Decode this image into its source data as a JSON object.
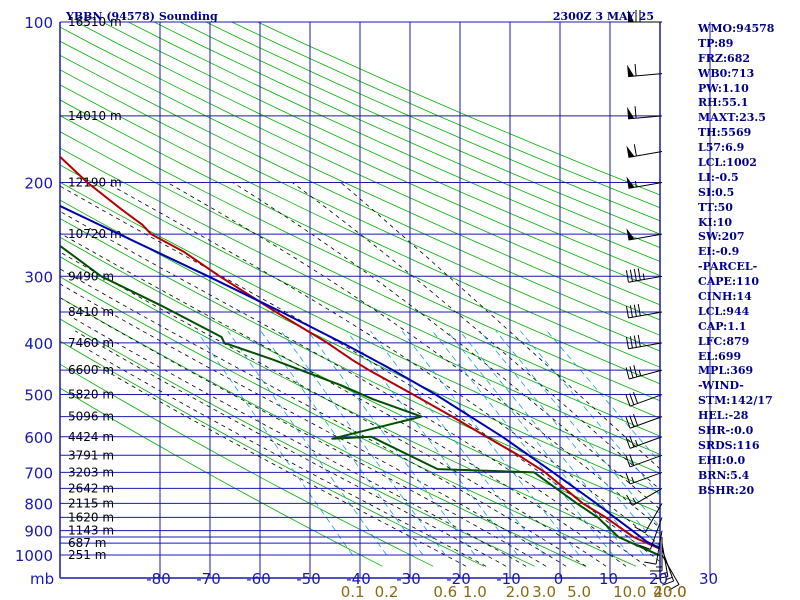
{
  "header": {
    "station_title": "YBBN (94578) Sounding",
    "valid_time": "2300Z  3 MAY 25"
  },
  "colors": {
    "axis_grid": "#1818b4",
    "dry_adiabat": "#00b000",
    "moist_adiabat": "#000000",
    "mixing_ratio": "#1aa0d0",
    "temperature": "#b40000",
    "dewpoint": "#005000",
    "parcel": "#0000b4",
    "wind_barbs": "#000000"
  },
  "chart_data": {
    "type": "skew-t log-p",
    "pressure_axis_label": "mb",
    "pressure_levels": [
      100,
      200,
      300,
      400,
      500,
      600,
      700,
      800,
      900,
      1000
    ],
    "pressure_gridlines": [
      100,
      150,
      200,
      250,
      300,
      350,
      400,
      450,
      500,
      550,
      600,
      650,
      700,
      750,
      800,
      850,
      900,
      925,
      950,
      1000
    ],
    "temperature_ticks": [
      -80,
      -70,
      -60,
      -50,
      -40,
      -30,
      -20,
      -10,
      0,
      10,
      20,
      30
    ],
    "mixing_ratio_labels": [
      "0.1",
      "0.2",
      "0.6",
      "1.0",
      "2.0",
      "3.0",
      "5.0",
      "10.0",
      "20.0",
      "40.0"
    ],
    "mixing_ratio_values": [
      0.1,
      0.2,
      0.6,
      1.0,
      2.0,
      3.0,
      5.0,
      10.0,
      20.0,
      40.0
    ],
    "height_labels": [
      {
        "p": 100,
        "text": "16510 m"
      },
      {
        "p": 150,
        "text": "14010 m"
      },
      {
        "p": 200,
        "text": "12190 m"
      },
      {
        "p": 250,
        "text": "10720 m"
      },
      {
        "p": 300,
        "text": "9490 m"
      },
      {
        "p": 350,
        "text": "8410 m"
      },
      {
        "p": 400,
        "text": "7460 m"
      },
      {
        "p": 450,
        "text": "6600 m"
      },
      {
        "p": 500,
        "text": "5820 m"
      },
      {
        "p": 550,
        "text": "5096 m"
      },
      {
        "p": 600,
        "text": "4424 m"
      },
      {
        "p": 650,
        "text": "3791 m"
      },
      {
        "p": 700,
        "text": "3203 m"
      },
      {
        "p": 750,
        "text": "2642 m"
      },
      {
        "p": 800,
        "text": "2115 m"
      },
      {
        "p": 850,
        "text": "1620 m"
      },
      {
        "p": 900,
        "text": "1143 m"
      },
      {
        "p": 950,
        "text": "687 m"
      },
      {
        "p": 1000,
        "text": "251 m"
      }
    ],
    "series": [
      {
        "key": "temperature",
        "points": [
          [
            1011,
            23.5
          ],
          [
            1000,
            22.6
          ],
          [
            925,
            16.4
          ],
          [
            850,
            12.8
          ],
          [
            800,
            9.6
          ],
          [
            700,
            5.2
          ],
          [
            650,
            1.6
          ],
          [
            600,
            -3.0
          ],
          [
            550,
            -7.8
          ],
          [
            500,
            -13.4
          ],
          [
            450,
            -19.8
          ],
          [
            430,
            -22.2
          ],
          [
            400,
            -25.4
          ],
          [
            350,
            -32.6
          ],
          [
            300,
            -40.3
          ],
          [
            270,
            -45.0
          ],
          [
            250,
            -49.8
          ],
          [
            240,
            -50.6
          ],
          [
            225,
            -53.2
          ],
          [
            200,
            -57.4
          ],
          [
            160,
            -63.2
          ],
          [
            150,
            -66.6
          ],
          [
            125,
            -69.0
          ],
          [
            100,
            -73.0
          ]
        ]
      },
      {
        "key": "dewpoint",
        "points": [
          [
            1011,
            21.5
          ],
          [
            1000,
            19.6
          ],
          [
            925,
            13.4
          ],
          [
            850,
            11.2
          ],
          [
            800,
            8.4
          ],
          [
            700,
            3.0
          ],
          [
            690,
            -16.0
          ],
          [
            600,
            -26.0
          ],
          [
            605,
            -34.0
          ],
          [
            550,
            -14.0
          ],
          [
            510,
            -22.0
          ],
          [
            480,
            -27.0
          ],
          [
            430,
            -38.0
          ],
          [
            400,
            -46.0
          ],
          [
            390,
            -46.0
          ],
          [
            340,
            -55.0
          ],
          [
            300,
            -64.0
          ],
          [
            200,
            -80.0
          ],
          [
            170,
            -85.0
          ]
        ]
      },
      {
        "key": "parcel",
        "points": [
          [
            1011,
            23.5
          ],
          [
            944,
            18.6
          ],
          [
            900,
            16.8
          ],
          [
            850,
            14.6
          ],
          [
            800,
            12.3
          ],
          [
            700,
            6.8
          ],
          [
            600,
            0.2
          ],
          [
            500,
            -8.9
          ],
          [
            450,
            -15.0
          ],
          [
            400,
            -22.4
          ],
          [
            350,
            -31.5
          ],
          [
            300,
            -42.6
          ],
          [
            250,
            -56.2
          ],
          [
            200,
            -72.8
          ],
          [
            170,
            -85.0
          ]
        ]
      }
    ],
    "wind_barbs": [
      {
        "p": 1000,
        "dir": 150,
        "spd": 10
      },
      {
        "p": 975,
        "dir": 160,
        "spd": 15
      },
      {
        "p": 950,
        "dir": 170,
        "spd": 15
      },
      {
        "p": 925,
        "dir": 180,
        "spd": 15
      },
      {
        "p": 900,
        "dir": 190,
        "spd": 10
      },
      {
        "p": 850,
        "dir": 200,
        "spd": 10
      },
      {
        "p": 800,
        "dir": 210,
        "spd": 10
      },
      {
        "p": 750,
        "dir": 240,
        "spd": 15
      },
      {
        "p": 700,
        "dir": 250,
        "spd": 15
      },
      {
        "p": 650,
        "dir": 250,
        "spd": 20
      },
      {
        "p": 600,
        "dir": 250,
        "spd": 25
      },
      {
        "p": 550,
        "dir": 250,
        "spd": 30
      },
      {
        "p": 500,
        "dir": 250,
        "spd": 30
      },
      {
        "p": 450,
        "dir": 255,
        "spd": 35
      },
      {
        "p": 400,
        "dir": 260,
        "spd": 40
      },
      {
        "p": 350,
        "dir": 260,
        "spd": 40
      },
      {
        "p": 300,
        "dir": 260,
        "spd": 45
      },
      {
        "p": 250,
        "dir": 260,
        "spd": 50
      },
      {
        "p": 200,
        "dir": 260,
        "spd": 55
      },
      {
        "p": 175,
        "dir": 260,
        "spd": 60
      },
      {
        "p": 150,
        "dir": 265,
        "spd": 60
      },
      {
        "p": 125,
        "dir": 265,
        "spd": 60
      },
      {
        "p": 100,
        "dir": 270,
        "spd": 70
      }
    ]
  },
  "sidebar": {
    "items": [
      "WMO:94578",
      "TP:89",
      "FRZ:682",
      "WB0:713",
      "PW:1.10",
      "RH:55.1",
      "MAXT:23.5",
      "TH:5569",
      "L57:6.9",
      "LCL:1002",
      "LI:-0.5",
      "SI:0.5",
      "TT:50",
      "KI:10",
      "SW:207",
      "EI:-0.9",
      "-PARCEL-",
      "CAPE:110",
      "CINH:14",
      "LCL:944",
      "CAP:1.1",
      "LFC:879",
      "EL:699",
      "MPL:369",
      "-WIND-",
      "STM:142/17",
      "HEL:-28",
      "SHR-:0.0",
      "SRDS:116",
      "EHI:0.0",
      "BRN:5.4",
      "BSHR:20"
    ]
  }
}
